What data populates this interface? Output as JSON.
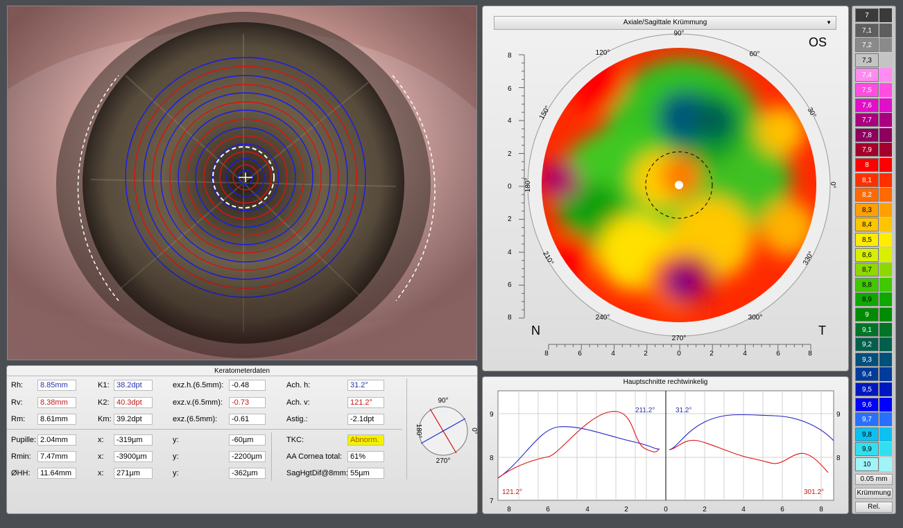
{
  "map_panel": {
    "dropdown_label": "Axiale/Sagittale Krümmung",
    "eye_side": "OS",
    "nasal": "N",
    "temporal": "T",
    "axis_ticks": [
      "8",
      "6",
      "4",
      "2",
      "0",
      "2",
      "4",
      "6",
      "8"
    ],
    "angles": {
      "a90": "90°",
      "a120": "120°",
      "a60": "60°",
      "a150": "150°",
      "a30": "30°",
      "a180": "180°",
      "a0": "0°",
      "a210": "210°",
      "a330": "330°",
      "a240": "240°",
      "a300": "300°",
      "a270": "270°"
    }
  },
  "kerato": {
    "title": "Keratometerdaten",
    "rh_label": "Rh:",
    "rh": "8.85mm",
    "rv_label": "Rv:",
    "rv": "8.38mm",
    "rm_label": "Rm:",
    "rm": "8.61mm",
    "k1_label": "K1:",
    "k1": "38.2dpt",
    "k2_label": "K2:",
    "k2": "40.3dpt",
    "km_label": "Km:",
    "km": "39.2dpt",
    "exzh_label": "exz.h.(6.5mm):",
    "exzh": "-0.48",
    "exzv_label": "exz.v.(6.5mm):",
    "exzv": "-0.73",
    "exz_label": "exz.(6.5mm):",
    "exz": "-0.61",
    "achh_label": "Ach. h:",
    "achh": "31.2°",
    "achv_label": "Ach. v:",
    "achv": "121.2°",
    "astig_label": "Astig.:",
    "astig": "-2.1dpt",
    "pupille_label": "Pupille:",
    "pupille": "2.04mm",
    "pupille_x_label": "x:",
    "pupille_x": "-319µm",
    "pupille_y_label": "y:",
    "pupille_y": "-60µm",
    "rmin_label": "Rmin:",
    "rmin": "7.47mm",
    "rmin_x_label": "x:",
    "rmin_x": "-3900µm",
    "rmin_y_label": "y:",
    "rmin_y": "-2200µm",
    "ohh_label": "ØHH:",
    "ohh": "11.64mm",
    "ohh_x_label": "x:",
    "ohh_x": "271µm",
    "ohh_y_label": "y:",
    "ohh_y": "-362µm",
    "tkc_label": "TKC:",
    "tkc": "Abnorm.",
    "aa_label": "AA Cornea total:",
    "aa": "61%",
    "sag_label": "SagHgtDif@8mm:",
    "sag": "55µm",
    "dial": {
      "top": "90°",
      "left": "180°",
      "right": "0°",
      "bottom": "270°"
    }
  },
  "profile": {
    "title": "Hauptschnitte rechtwinkelig",
    "left_blue_label": "211.2°",
    "left_red_label": "121.2°",
    "right_blue_label": "31.2°",
    "right_red_label": "301.2°",
    "y_ticks": [
      "9",
      "8",
      "7"
    ],
    "x_ticks": [
      "8",
      "6",
      "4",
      "2",
      "0",
      "2",
      "4",
      "6",
      "8"
    ]
  },
  "colors": {
    "blue": "#2233aa",
    "red": "#c01818",
    "accent_highlight": "#f4f400"
  },
  "scale": {
    "values": [
      "7",
      "7,1",
      "7,2",
      "7,3",
      "7,4",
      "7,5",
      "7,6",
      "7,7",
      "7,8",
      "7,9",
      "8",
      "8,1",
      "8,2",
      "8,3",
      "8,4",
      "8,5",
      "8,6",
      "8,7",
      "8,8",
      "8,9",
      "9",
      "9,1",
      "9,2",
      "9,3",
      "9,4",
      "9,5",
      "9,6",
      "9,7",
      "9,8",
      "9,9",
      "10"
    ],
    "colors": [
      "#3a3a3a",
      "#5e5e5e",
      "#8a8a8a",
      "#c4c4c4",
      "#ff8cf0",
      "#ff4ee0",
      "#e010c8",
      "#a8007e",
      "#8c0060",
      "#a4002c",
      "#ff0000",
      "#ff3000",
      "#ff6a00",
      "#ffa000",
      "#ffc400",
      "#ffec00",
      "#d8f000",
      "#8cd800",
      "#40c800",
      "#10a800",
      "#008c00",
      "#007428",
      "#00604c",
      "#00507c",
      "#003c9c",
      "#0018c0",
      "#0000ff",
      "#2870ff",
      "#0cc0f0",
      "#30e0f0",
      "#a0f4f8"
    ],
    "step": "0.05 mm",
    "mode": "Krümmung",
    "rel": "Rel."
  }
}
